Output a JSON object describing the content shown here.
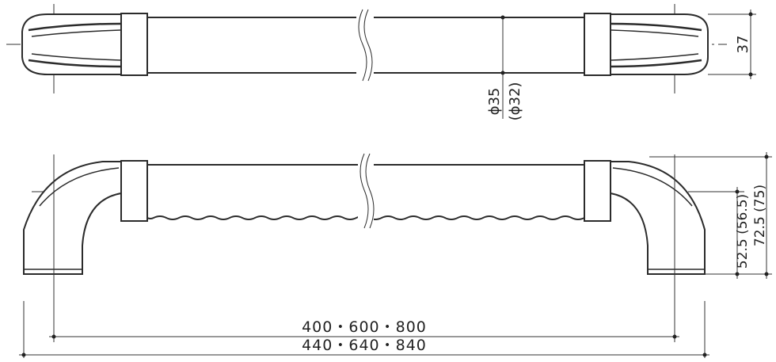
{
  "dimensions": {
    "bar_height": "37",
    "diameter": "ϕ35",
    "diameter_alt": "(ϕ32)",
    "projection_inner": "52.5 (56.5)",
    "projection_outer": "72.5 (75)",
    "inner_length": "400・600・800",
    "outer_length": "440・640・840"
  }
}
